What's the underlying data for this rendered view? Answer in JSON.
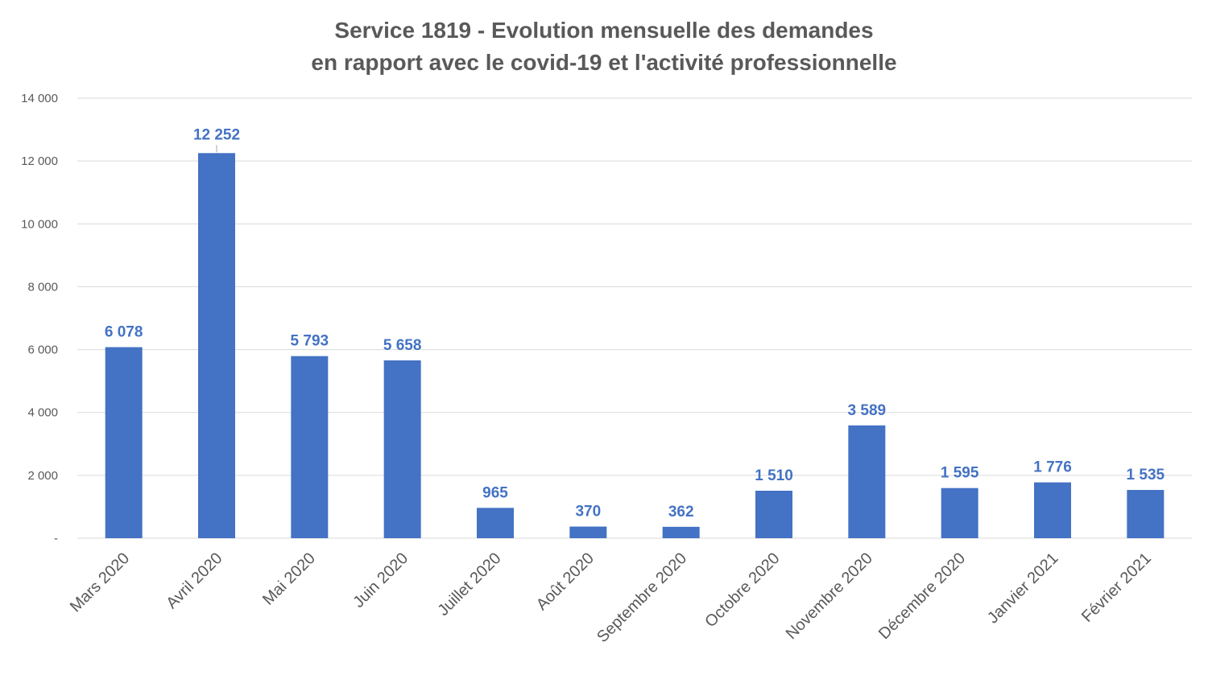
{
  "chart_data": {
    "type": "bar",
    "title": "Service 1819 - Evolution mensuelle des demandes",
    "subtitle": "en rapport avec le covid-19 et l'activité professionnelle",
    "xlabel": "",
    "ylabel": "",
    "ylim": [
      0,
      14000
    ],
    "grid": true,
    "bar_color": "#4472C4",
    "label_color": "#4472C4",
    "categories": [
      "Mars 2020",
      "Avril 2020",
      "Mai 2020",
      "Juin 2020",
      "Juillet 2020",
      "Août 2020",
      "Septembre 2020",
      "Octobre 2020",
      "Novembre 2020",
      "Décembre 2020",
      "Janvier 2021",
      "Février 2021"
    ],
    "values": [
      6078,
      12252,
      5793,
      5658,
      965,
      370,
      362,
      1510,
      3589,
      1595,
      1776,
      1535
    ],
    "value_labels": [
      "6 078",
      "12 252",
      "5 793",
      "5 658",
      "965",
      "370",
      "362",
      "1 510",
      "3 589",
      "1 595",
      "1 776",
      "1 535"
    ],
    "y_ticks": [
      0,
      2000,
      4000,
      6000,
      8000,
      10000,
      12000,
      14000
    ],
    "y_tick_labels": [
      "-",
      "2 000",
      "4 000",
      "6 000",
      "8 000",
      "10 000",
      "12 000",
      "14 000"
    ]
  }
}
